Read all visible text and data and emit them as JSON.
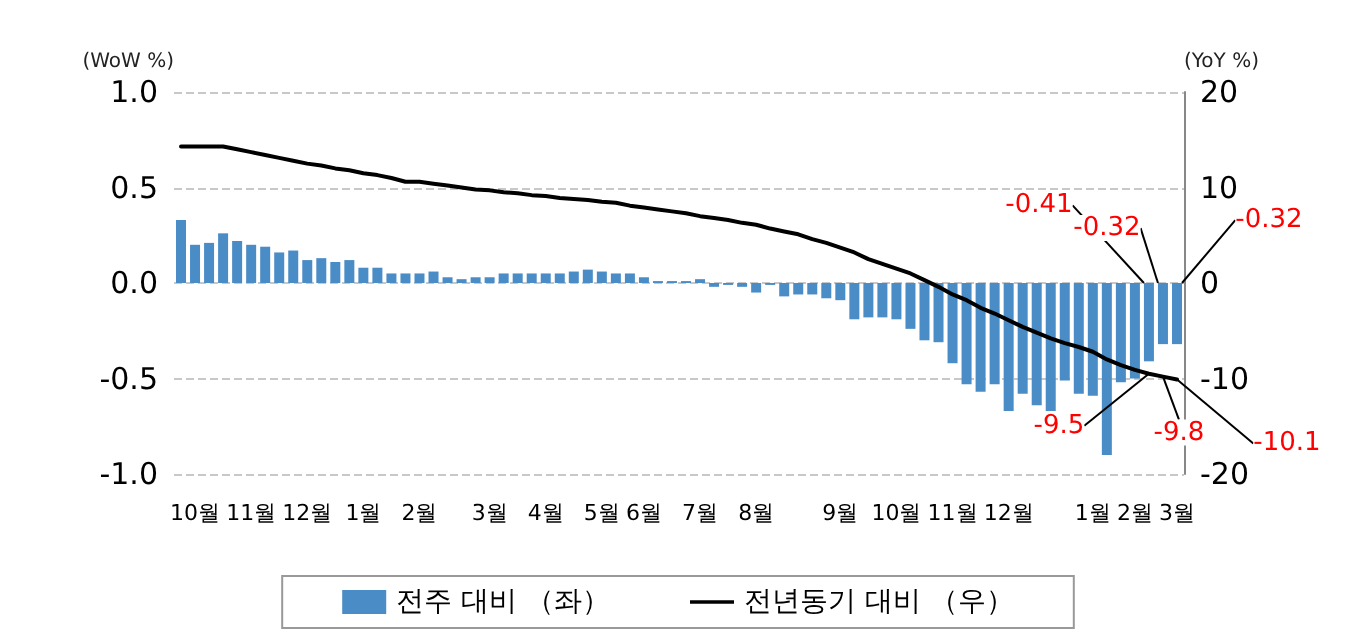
{
  "chart_data": {
    "type": "bar",
    "ylabel": "(WoW %)",
    "y2label": "(YoY %)",
    "categories": [
      null,
      "10월",
      null,
      null,
      null,
      "11월",
      null,
      null,
      null,
      "12월",
      null,
      null,
      null,
      "1월",
      null,
      null,
      null,
      "2월",
      null,
      null,
      null,
      null,
      "3월",
      null,
      null,
      null,
      "4월",
      null,
      null,
      null,
      "5월",
      null,
      null,
      "6월",
      null,
      null,
      null,
      "7월",
      null,
      null,
      null,
      "8월",
      null,
      null,
      null,
      null,
      null,
      "9월",
      null,
      null,
      null,
      "10월",
      null,
      null,
      null,
      "11월",
      null,
      null,
      null,
      "12월",
      null,
      null,
      null,
      null,
      null,
      "1월",
      null,
      null,
      "2월",
      null,
      null,
      "3월"
    ],
    "series": [
      {
        "name": "전주 대비 （좌）",
        "color": "#4a8cc6",
        "values": [
          0.33,
          0.2,
          0.21,
          0.26,
          0.22,
          0.2,
          0.19,
          0.16,
          0.17,
          0.12,
          0.13,
          0.11,
          0.12,
          0.08,
          0.08,
          0.05,
          0.05,
          0.05,
          0.06,
          0.03,
          0.02,
          0.03,
          0.03,
          0.05,
          0.05,
          0.05,
          0.05,
          0.05,
          0.06,
          0.07,
          0.06,
          0.05,
          0.05,
          0.03,
          0.01,
          0.01,
          0.01,
          0.02,
          -0.02,
          -0.01,
          -0.02,
          -0.05,
          -0.01,
          -0.07,
          -0.06,
          -0.06,
          -0.08,
          -0.09,
          -0.19,
          -0.18,
          -0.18,
          -0.19,
          -0.24,
          -0.3,
          -0.31,
          -0.42,
          -0.53,
          -0.57,
          -0.53,
          -0.67,
          -0.58,
          -0.64,
          -0.67,
          -0.51,
          -0.58,
          -0.59,
          -0.9,
          -0.52,
          -0.5,
          -0.41,
          -0.32,
          -0.32
        ],
        "value_labels": [
          null,
          null,
          null,
          null,
          null,
          null,
          null,
          null,
          null,
          null,
          null,
          null,
          null,
          null,
          null,
          null,
          null,
          null,
          null,
          null,
          null,
          null,
          null,
          null,
          null,
          null,
          null,
          null,
          null,
          null,
          null,
          null,
          null,
          null,
          null,
          null,
          null,
          null,
          null,
          null,
          null,
          null,
          null,
          null,
          null,
          null,
          null,
          null,
          null,
          null,
          null,
          null,
          null,
          null,
          null,
          null,
          null,
          null,
          null,
          null,
          null,
          null,
          null,
          null,
          null,
          null,
          null,
          null,
          null,
          "-0.41",
          "-0.32",
          "-0.32"
        ]
      },
      {
        "name": "전년동기 대비 （우）",
        "type": "line",
        "axis": "y2",
        "color": "#000000",
        "values": [
          14.3,
          14.3,
          14.3,
          14.3,
          14.0,
          13.7,
          13.4,
          13.1,
          12.8,
          12.5,
          12.3,
          12.0,
          11.8,
          11.5,
          11.3,
          11.0,
          10.6,
          10.6,
          10.4,
          10.2,
          10.0,
          9.8,
          9.7,
          9.5,
          9.4,
          9.2,
          9.1,
          8.9,
          8.8,
          8.7,
          8.5,
          8.4,
          8.1,
          7.9,
          7.7,
          7.5,
          7.3,
          7.0,
          6.8,
          6.6,
          6.3,
          6.1,
          5.7,
          5.4,
          5.1,
          4.6,
          4.2,
          3.7,
          3.2,
          2.5,
          2.0,
          1.5,
          1.0,
          0.3,
          -0.4,
          -1.2,
          -1.8,
          -2.6,
          -3.2,
          -3.9,
          -4.6,
          -5.2,
          -5.8,
          -6.3,
          -6.7,
          -7.2,
          -8.0,
          -8.6,
          -9.1,
          -9.5,
          -9.8,
          -10.1
        ],
        "value_labels": [
          null,
          null,
          null,
          null,
          null,
          null,
          null,
          null,
          null,
          null,
          null,
          null,
          null,
          null,
          null,
          null,
          null,
          null,
          null,
          null,
          null,
          null,
          null,
          null,
          null,
          null,
          null,
          null,
          null,
          null,
          null,
          null,
          null,
          null,
          null,
          null,
          null,
          null,
          null,
          null,
          null,
          null,
          null,
          null,
          null,
          null,
          null,
          null,
          null,
          null,
          null,
          null,
          null,
          null,
          null,
          null,
          null,
          null,
          null,
          null,
          null,
          null,
          null,
          null,
          null,
          null,
          null,
          null,
          null,
          "-9.5",
          "-9.8",
          "-10.1"
        ]
      }
    ],
    "ylim": [
      -1,
      1
    ],
    "yticks": [
      {
        "value": -1,
        "label": "-1.0"
      },
      -0.5,
      {
        "value": 0,
        "label": "0.0"
      },
      0.5,
      {
        "value": 1,
        "label": "1.0"
      }
    ],
    "y2lim": [
      -20,
      20
    ],
    "y2ticks": [
      -20,
      -10,
      0,
      10,
      20
    ],
    "grid": "y",
    "legend": "bottom",
    "marker": "none",
    "line_style": "solid"
  }
}
